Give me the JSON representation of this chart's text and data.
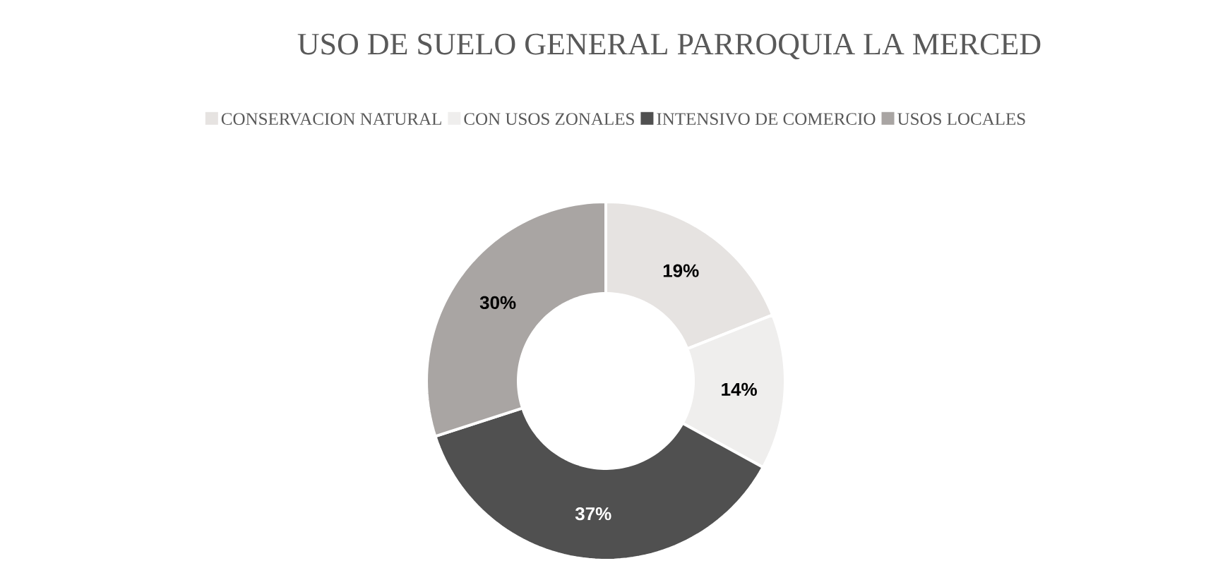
{
  "chart_data": {
    "type": "donut",
    "title": "USO DE SUELO GENERAL PARROQUIA LA MERCED",
    "categories": [
      "CONSERVACION NATURAL",
      "CON USOS ZONALES",
      "INTENSIVO DE COMERCIO",
      "USOS LOCALES"
    ],
    "values": [
      19,
      14,
      37,
      30
    ],
    "colors": [
      "#e6e3e1",
      "#efeeed",
      "#505050",
      "#a9a5a3"
    ],
    "value_labels": [
      "19%",
      "14%",
      "37%",
      "30%"
    ],
    "legend": "top"
  }
}
